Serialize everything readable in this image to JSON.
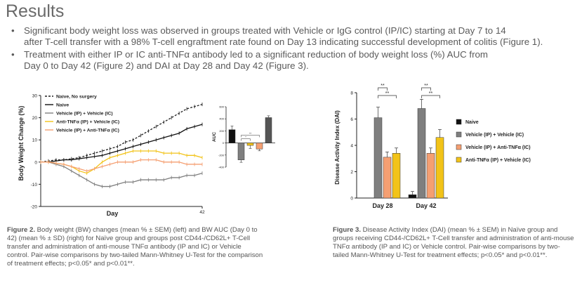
{
  "title": "Results",
  "bullets": [
    {
      "line1": "Significant body weight loss was observed in groups treated with Vehicle or IgG control (IP/IC) starting at Day 7 to 14",
      "line2": "after T-cell transfer with a 98% T-cell engraftment rate found on Day 13 indicating successful development of colitis (Figure 1)."
    },
    {
      "line1": "Treatment with either IP or IC anti-TNFα antibody led to a significant reduction of body weight loss (%) AUC from",
      "line2": "Day 0 to Day 42 (Figure 2) and DAI at Day 28 and Day 42 (Figure 3)."
    }
  ],
  "fig2": {
    "caption_label": "Figure 2.",
    "caption_text": "Body weight (BW) changes (mean % ± SEM) (left) and BW AUC (Day 0 to 42) (mean % ± SD) (right) for Naïve group and groups post CD44-/CD62L+ T-Cell transfer and administration of anti-mouse TNFα antibody (IP and IC) or Vehicle control. Pair-wise comparisons by two-tailed Mann-Whitney U-Test for the comparison of treatment effects; p<0.05* and p<0.01**."
  },
  "fig3": {
    "caption_label": "Figure 3.",
    "caption_text": "Disease Activity Index (DAI) (mean % ± SEM) in Naïve group and groups receiving CD44-/CD62L+ T-Cell transfer and administration of anti-mouse TNFα antibody (IP and IC) or Vehicle control. Pair-wise comparisons by two-tailed Mann-Whitney U-Test for treatment effects; p<0.05* and p<0.01**."
  },
  "chart_data": [
    {
      "type": "line",
      "ylabel": "Body Weight Change (%)",
      "xlabel": "Day",
      "x_tick_labels": [
        "42"
      ],
      "y_tick_labels": [
        "30",
        "20",
        "10",
        "0",
        "-10",
        "-20"
      ],
      "ylim": [
        -20,
        30
      ],
      "xlim": [
        0,
        42
      ],
      "legend_position": "top-left",
      "series": [
        {
          "name": "Naive, No surgery",
          "color": "#222222",
          "dashed": true,
          "x": [
            0,
            2,
            4,
            6,
            8,
            10,
            12,
            14,
            16,
            18,
            20,
            22,
            24,
            26,
            28,
            30,
            32,
            34,
            36,
            38,
            40,
            42
          ],
          "y": [
            0,
            0.5,
            1,
            1,
            1.5,
            2,
            3,
            4,
            5,
            6,
            7,
            9,
            10,
            12,
            14,
            16,
            18,
            20,
            22,
            24,
            25,
            26
          ]
        },
        {
          "name": "Naive",
          "color": "#111111",
          "dashed": false,
          "x": [
            0,
            2,
            4,
            6,
            8,
            10,
            12,
            14,
            16,
            18,
            20,
            22,
            24,
            26,
            28,
            30,
            32,
            34,
            36,
            38,
            40,
            42
          ],
          "y": [
            0,
            0,
            0.5,
            1,
            1,
            1.5,
            2,
            2.5,
            3,
            4,
            5,
            6,
            7,
            8,
            9,
            10,
            11,
            12,
            13,
            15,
            16,
            17
          ]
        },
        {
          "name": "Vehicle (IP) + Vehicle (IC)",
          "color": "#7f7f7f",
          "dashed": false,
          "x": [
            0,
            2,
            4,
            6,
            8,
            10,
            12,
            14,
            16,
            18,
            20,
            22,
            24,
            26,
            28,
            30,
            32,
            34,
            36,
            38,
            40,
            42
          ],
          "y": [
            0,
            0,
            -1,
            -2,
            -4,
            -6,
            -8,
            -10,
            -11,
            -11,
            -10,
            -9,
            -9,
            -8,
            -8,
            -8,
            -8,
            -7,
            -7,
            -6,
            -6,
            -5
          ]
        },
        {
          "name": "Anti-TNFα (IP) + Vehicle (IC)",
          "color": "#f2c318",
          "dashed": false,
          "x": [
            0,
            2,
            4,
            6,
            8,
            10,
            12,
            14,
            16,
            18,
            20,
            22,
            24,
            26,
            28,
            30,
            32,
            34,
            36,
            38,
            40,
            42
          ],
          "y": [
            0,
            0,
            -0.5,
            -1,
            -2,
            -4,
            -5,
            -3,
            0,
            2,
            3,
            4,
            5,
            5,
            5,
            5,
            4,
            4,
            4,
            3,
            3,
            2
          ]
        },
        {
          "name": "Vehicle (IP) + Anti-TNFα (IC)",
          "color": "#f59f72",
          "dashed": false,
          "x": [
            0,
            2,
            4,
            6,
            8,
            10,
            12,
            14,
            16,
            18,
            20,
            22,
            24,
            26,
            28,
            30,
            32,
            34,
            36,
            38,
            40,
            42
          ],
          "y": [
            0,
            0,
            -0.5,
            -1,
            -2,
            -3,
            -4,
            -3,
            -2,
            -1,
            0,
            0,
            0,
            1,
            1,
            1,
            0,
            0,
            0,
            -1,
            -1,
            -1
          ]
        }
      ]
    },
    {
      "type": "bar",
      "ylabel": "AUC",
      "y_tick_labels": [
        "600",
        "400",
        "200",
        "0",
        "-200",
        "-400"
      ],
      "ylim": [
        -400,
        600
      ],
      "categories": [
        "Naive",
        "Vehicle (IP) + Vehicle (IC)",
        "Anti-TNFα (IP) + Vehicle (IC)",
        "Vehicle (IP) + Anti-TNFα (IC)",
        "Naive, No surgery"
      ],
      "values": [
        220,
        -280,
        -40,
        -100,
        420
      ],
      "errors": [
        60,
        40,
        50,
        30,
        30
      ],
      "colors": [
        "#111111",
        "#7f7f7f",
        "#f2c318",
        "#f59f72",
        "#555555"
      ],
      "significance": [
        "*",
        "**"
      ]
    },
    {
      "type": "bar",
      "ylabel": "Disease Activity Index (DAI)",
      "y_tick_labels": [
        "0",
        "2",
        "4",
        "6",
        "8"
      ],
      "ylim": [
        0,
        8
      ],
      "categories": [
        "Day 28",
        "Day 42"
      ],
      "legend_position": "right",
      "series": [
        {
          "name": "Naive",
          "color": "#111111",
          "values": [
            0,
            0.25
          ],
          "errors": [
            0,
            0.25
          ]
        },
        {
          "name": "Vehicle (IP) + Vehicle (IC)",
          "color": "#7f7f7f",
          "values": [
            6.1,
            6.8
          ],
          "errors": [
            0.8,
            0.7
          ]
        },
        {
          "name": "Vehicle (IP) + Anti-TNFα (IC)",
          "color": "#f59f72",
          "values": [
            3.1,
            3.4
          ],
          "errors": [
            0.4,
            0.4
          ]
        },
        {
          "name": "Anti-TNFα (IP) + Vehicle (IC)",
          "color": "#f2c318",
          "values": [
            3.4,
            4.6
          ],
          "errors": [
            0.4,
            0.6
          ]
        }
      ],
      "significance": [
        "**",
        "**",
        "**",
        "**"
      ]
    }
  ]
}
